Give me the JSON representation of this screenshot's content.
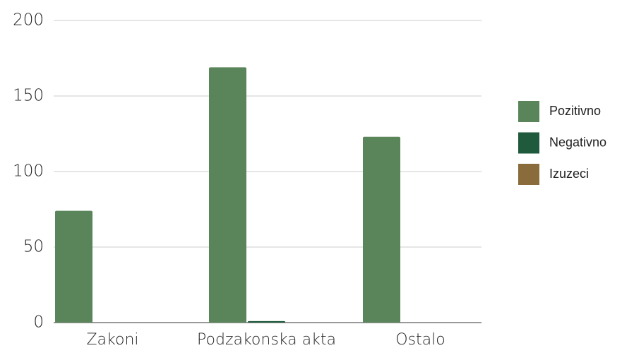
{
  "chart_data": {
    "type": "bar",
    "categories": [
      "Zakoni",
      "Podzakonska akta",
      "Ostalo"
    ],
    "series": [
      {
        "name": "Pozitivno",
        "color": "#5a855b",
        "values": [
          74,
          169,
          123
        ]
      },
      {
        "name": "Negativno",
        "color": "#1f5a3c",
        "values": [
          0,
          1,
          0
        ]
      },
      {
        "name": "Izuzeci",
        "color": "#8a6b3b",
        "values": [
          0,
          0,
          0
        ]
      }
    ],
    "ylim": [
      0,
      200
    ],
    "yticks": [
      0,
      50,
      100,
      150,
      200
    ],
    "grid": true,
    "legend": "right"
  }
}
